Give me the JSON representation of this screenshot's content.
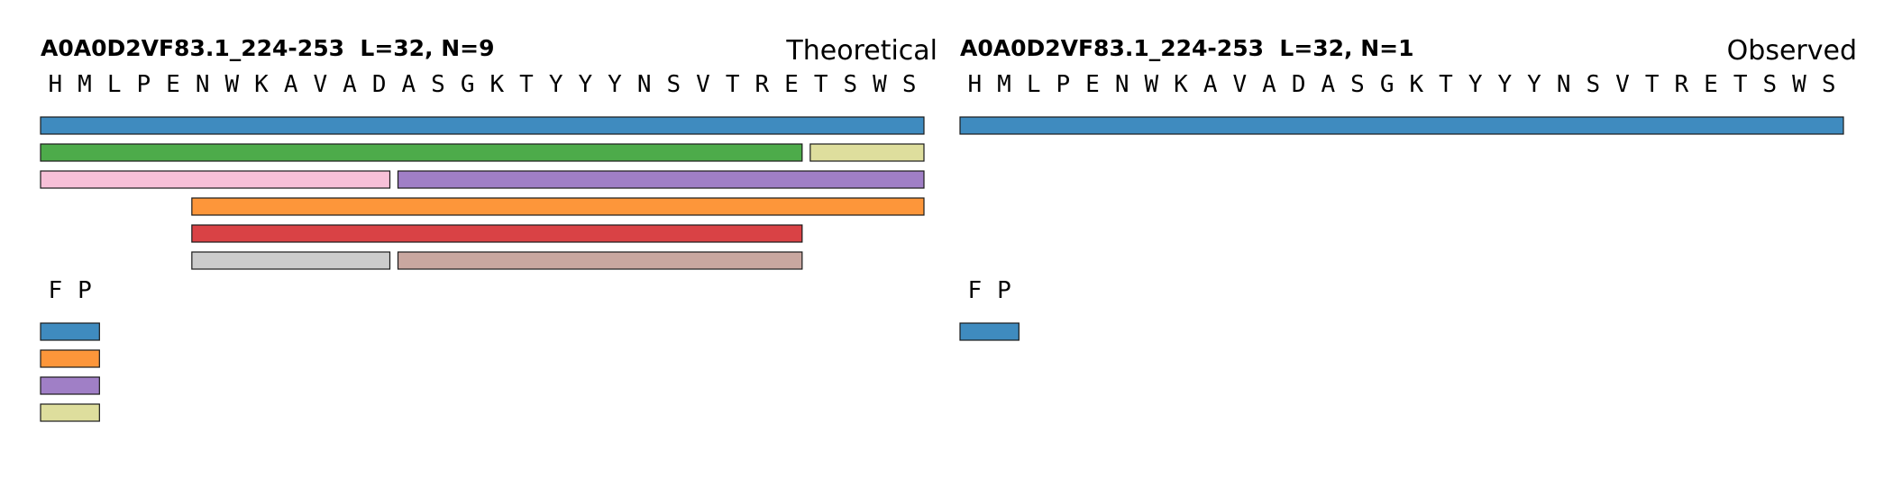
{
  "panels": [
    {
      "title": "A0A0D2VF83.1_224-253  L=32, N=9",
      "mode": "Theoretical",
      "sequence": [
        "H",
        "M",
        "L",
        "P",
        "E",
        "N",
        "W",
        "K",
        "A",
        "V",
        "A",
        "D",
        "A",
        "S",
        "G",
        "K",
        "T",
        "Y",
        "Y",
        "Y",
        "N",
        "S",
        "V",
        "T",
        "R",
        "E",
        "T",
        "S",
        "W",
        "S"
      ],
      "fragments": [
        {
          "row": 0,
          "start": 0,
          "end": 29,
          "color": "#3f8bbf"
        },
        {
          "row": 1,
          "start": 0,
          "end": 25,
          "color": "#4dab4a"
        },
        {
          "row": 1,
          "start": 26,
          "end": 29,
          "color": "#dede9d"
        },
        {
          "row": 2,
          "start": 0,
          "end": 11,
          "color": "#f7c0d8"
        },
        {
          "row": 2,
          "start": 12,
          "end": 29,
          "color": "#a07fc6"
        },
        {
          "row": 3,
          "start": 5,
          "end": 29,
          "color": "#fd963a"
        },
        {
          "row": 4,
          "start": 5,
          "end": 25,
          "color": "#d94245"
        },
        {
          "row": 5,
          "start": 5,
          "end": 11,
          "color": "#cccccc"
        },
        {
          "row": 5,
          "start": 12,
          "end": 25,
          "color": "#c9a7a0"
        }
      ],
      "fp_residues": [
        "F",
        "P"
      ],
      "fp_fragments": [
        {
          "row": 0,
          "start": 0,
          "end": 1,
          "color": "#3f8bbf"
        },
        {
          "row": 1,
          "start": 0,
          "end": 1,
          "color": "#fd963a"
        },
        {
          "row": 2,
          "start": 0,
          "end": 1,
          "color": "#a07fc6"
        },
        {
          "row": 3,
          "start": 0,
          "end": 1,
          "color": "#dede9d"
        }
      ]
    },
    {
      "title": "A0A0D2VF83.1_224-253  L=32, N=1",
      "mode": "Observed",
      "sequence": [
        "H",
        "M",
        "L",
        "P",
        "E",
        "N",
        "W",
        "K",
        "A",
        "V",
        "A",
        "D",
        "A",
        "S",
        "G",
        "K",
        "T",
        "Y",
        "Y",
        "Y",
        "N",
        "S",
        "V",
        "T",
        "R",
        "E",
        "T",
        "S",
        "W",
        "S"
      ],
      "fragments": [
        {
          "row": 0,
          "start": 0,
          "end": 29,
          "color": "#3f8bbf"
        }
      ],
      "fp_residues": [
        "F",
        "P"
      ],
      "fp_fragments": [
        {
          "row": 0,
          "start": 0,
          "end": 1,
          "color": "#3f8bbf"
        }
      ]
    }
  ]
}
